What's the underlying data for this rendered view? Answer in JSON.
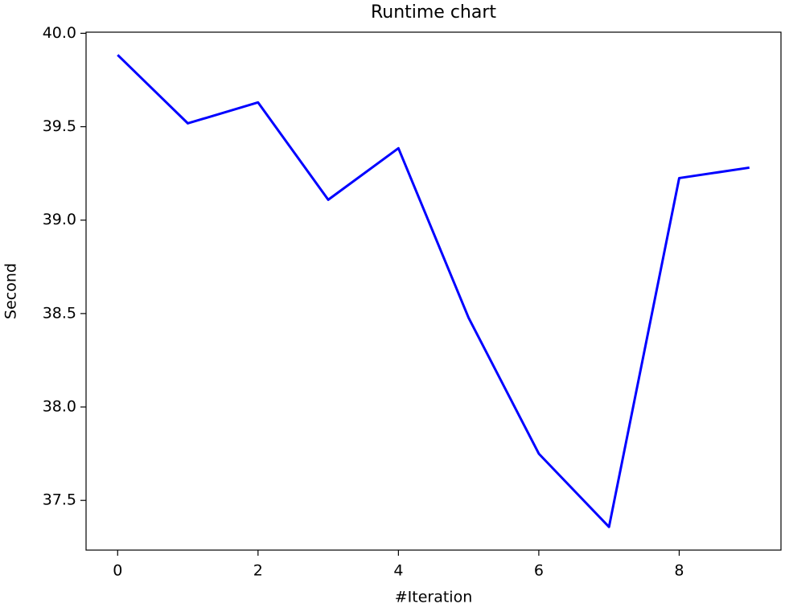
{
  "chart_data": {
    "type": "line",
    "title": "Runtime chart",
    "x_label": "#Iteration",
    "y_label": "Second",
    "x": [
      0,
      1,
      2,
      3,
      4,
      5,
      6,
      7,
      8,
      9
    ],
    "series": [
      {
        "name": "Runtime",
        "color": "#0000ff",
        "values": [
          39.884,
          39.518,
          39.63,
          39.109,
          39.385,
          38.477,
          37.75,
          37.358,
          39.225,
          39.281
        ]
      }
    ],
    "xlim": [
      -0.45,
      9.45
    ],
    "xticks": [
      0,
      2,
      4,
      6,
      8
    ],
    "ylim": [
      37.234,
      40.006
    ],
    "yticks": [
      {
        "value": 37.5,
        "label": "37.5"
      },
      {
        "value": 38,
        "label": "38.0"
      },
      {
        "value": 38.5,
        "label": "38.5"
      },
      {
        "value": 39,
        "label": "39.0"
      },
      {
        "value": 39.5,
        "label": "39.5"
      },
      {
        "value": 40,
        "label": "40.0"
      }
    ],
    "grid": false
  }
}
